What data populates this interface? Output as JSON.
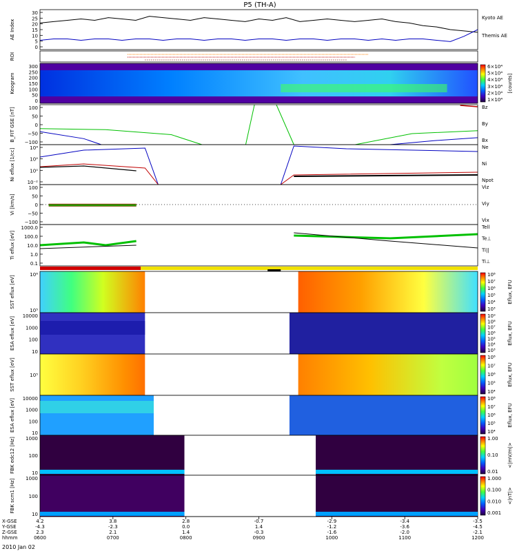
{
  "title": "P5 (TH-A)",
  "date_label": "2010 Jan 02",
  "chart_data": [
    {
      "type": "line",
      "id": "ae",
      "ylabel": "AE Index",
      "yticks": [
        "30",
        "25",
        "20",
        "15",
        "10",
        "5",
        "0"
      ],
      "ylim": [
        0,
        30
      ],
      "series": [
        {
          "name": "Kyoto AE",
          "color": "#000000",
          "values": [
            20,
            21,
            22,
            23,
            22,
            24,
            23,
            22,
            25,
            24,
            23,
            22,
            24,
            23,
            22,
            21,
            23,
            22,
            24,
            21,
            22,
            23,
            22,
            21,
            22,
            23,
            21,
            20,
            18,
            17,
            15,
            14,
            13
          ]
        },
        {
          "name": "Themis AE",
          "color": "#0000c0",
          "values": [
            7,
            8,
            8,
            7,
            8,
            8,
            7,
            8,
            8,
            7,
            8,
            8,
            7,
            8,
            8,
            7,
            8,
            8,
            7,
            8,
            8,
            7,
            8,
            8,
            7,
            8,
            7,
            8,
            8,
            7,
            6,
            10,
            15
          ]
        }
      ]
    },
    {
      "type": "line",
      "id": "roi",
      "ylabel": "ROI"
    },
    {
      "type": "heatmap",
      "id": "keogram",
      "ylabel": "Keogram",
      "yticks": [
        "300",
        "250",
        "200",
        "150",
        "100",
        "50",
        "0"
      ],
      "colorbar": {
        "ticks": [
          "6×10⁴",
          "5×10⁴",
          "4×10⁴",
          "3×10⁴",
          "2×10⁴",
          "1×10⁴"
        ],
        "label": "[counts]"
      }
    },
    {
      "type": "line",
      "id": "bfit",
      "ylabel": "B_FIT GSE [nT]",
      "yticks": [
        "100",
        "50",
        "0",
        "−50",
        "−100"
      ],
      "ylim": [
        -100,
        100
      ],
      "series": [
        {
          "name": "Bz",
          "color": "#c00000"
        },
        {
          "name": "By",
          "color": "#00c000"
        },
        {
          "name": "Bx",
          "color": "#0000c0"
        }
      ]
    },
    {
      "type": "line",
      "id": "ni",
      "ylabel": "Ni eflux [1/cc]",
      "yticks": [
        "10⁴",
        "10²",
        "10⁰",
        "10⁻²"
      ],
      "series": [
        {
          "name": "Ne",
          "color": "#c00000"
        },
        {
          "name": "Ni",
          "color": "#000000"
        },
        {
          "name": "Npot",
          "color": "#0000c0"
        }
      ]
    },
    {
      "type": "line",
      "id": "vi",
      "ylabel": "Vi [km/s]",
      "yticks": [
        "100",
        "50",
        "0",
        "−50",
        "−100"
      ],
      "ylim": [
        -100,
        100
      ],
      "series": [
        {
          "name": "Viz",
          "color": "#c00000"
        },
        {
          "name": "Viy",
          "color": "#00c000"
        },
        {
          "name": "Vix",
          "color": "#0000c0"
        }
      ]
    },
    {
      "type": "line",
      "id": "ti",
      "ylabel": "Ti eflux [eV]",
      "yticks": [
        "1000.0",
        "100.0",
        "10.0",
        "1.0",
        "0.1"
      ],
      "series": [
        {
          "name": "Tell",
          "color": "#000000"
        },
        {
          "name": "Te⊥",
          "color": "#c00000"
        },
        {
          "name": "Ti||",
          "color": "#00c000"
        },
        {
          "name": "Ti⊥",
          "color": "#0000c0"
        }
      ]
    },
    {
      "type": "heatmap",
      "id": "sst-e",
      "ylabel": "SST eflux [eV]",
      "yticks": [
        "10⁶",
        "10⁵"
      ],
      "colorbar": {
        "ticks": [
          "10⁸",
          "10⁷",
          "10⁶",
          "10⁵",
          "10⁴",
          "10³"
        ],
        "label": "Eflux, EFU"
      }
    },
    {
      "type": "heatmap",
      "id": "esa-e",
      "ylabel": "ESA eflux [eV]",
      "yticks": [
        "10000",
        "1000",
        "100",
        "10"
      ],
      "colorbar": {
        "ticks": [
          "10⁹",
          "10⁸",
          "10⁷",
          "10⁶",
          "10⁵",
          "10⁴",
          "10³"
        ],
        "label": "Eflux, EFU"
      }
    },
    {
      "type": "heatmap",
      "id": "sst-i",
      "ylabel": "SST eflux [eV]",
      "yticks": [
        "10⁵"
      ],
      "colorbar": {
        "ticks": [
          "10⁸",
          "10⁷",
          "10⁶",
          "10⁵",
          "10⁴"
        ],
        "label": "Eflux, EFU"
      }
    },
    {
      "type": "heatmap",
      "id": "esa-i",
      "ylabel": "ESA eflux [eV]",
      "yticks": [
        "10000",
        "1000",
        "100",
        "10"
      ],
      "colorbar": {
        "ticks": [
          "10⁸",
          "10⁷",
          "10⁶",
          "10⁵",
          "10⁴"
        ],
        "label": "Eflux, EFU"
      }
    },
    {
      "type": "heatmap",
      "id": "fbk1",
      "ylabel": "FBK edc12 [Hz]",
      "yticks": [
        "1000",
        "100",
        "10"
      ],
      "colorbar": {
        "ticks": [
          "1.00",
          "0.10",
          "0.01"
        ],
        "label": "<|mV/m|>"
      }
    },
    {
      "type": "heatmap",
      "id": "fbk2",
      "ylabel": "FBK scm1 [Hz]",
      "yticks": [
        "1000",
        "100",
        "10"
      ],
      "colorbar": {
        "ticks": [
          "1.000",
          "0.100",
          "0.010",
          "0.001"
        ],
        "label": "<|nT|>"
      }
    }
  ],
  "xaxis": {
    "row_labels": [
      "X-GSE",
      "Y-GSE",
      "Z-GSE",
      "hhmm"
    ],
    "columns": [
      {
        "x": "4.2",
        "y": "-4.3",
        "z": "2.3",
        "t": "0600"
      },
      {
        "x": "3.8",
        "y": "-2.3",
        "z": "2.1",
        "t": "0700"
      },
      {
        "x": "2.8",
        "y": "0.0",
        "z": "1.4",
        "t": "0800"
      },
      {
        "x": "-0.7",
        "y": "1.4",
        "z": "-0.3",
        "t": "0900"
      },
      {
        "x": "-2.9",
        "y": "-1.2",
        "z": "-1.6",
        "t": "1000"
      },
      {
        "x": "-3.4",
        "y": "-3.6",
        "z": "-2.0",
        "t": "1100"
      },
      {
        "x": "-3.5",
        "y": "-4.5",
        "z": "-2.1",
        "t": "1200"
      }
    ]
  },
  "colors": {
    "red": "#c00000",
    "green": "#00c000",
    "blue": "#0000c0",
    "yellow": "#f0e000"
  }
}
